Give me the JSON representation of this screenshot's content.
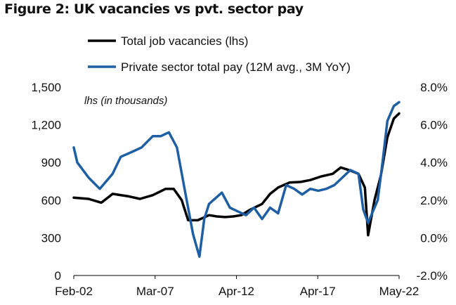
{
  "title": "Figure 2: UK vacancies vs pvt. sector pay",
  "chart_data": {
    "type": "line",
    "annotation": "lhs (in thousands)",
    "legend_position": "top",
    "grid": false,
    "x_ticks": [
      "Feb-02",
      "Mar-07",
      "Apr-12",
      "Apr-17",
      "May-22"
    ],
    "x_range": [
      2002.08,
      2022.33
    ],
    "y_left": {
      "range": [
        0,
        1500
      ],
      "ticks": [
        "0",
        "300",
        "600",
        "900",
        "1,200",
        "1,500"
      ]
    },
    "y_right": {
      "range": [
        -2.0,
        8.0
      ],
      "ticks": [
        "-2.0%",
        "0.0%",
        "2.0%",
        "4.0%",
        "6.0%",
        "8.0%"
      ]
    },
    "series": [
      {
        "name": "Total job vacancies (lhs)",
        "axis": "left",
        "color": "#000000",
        "x": [
          2002.08,
          2003.0,
          2003.8,
          2004.5,
          2005.5,
          2006.2,
          2007.0,
          2007.8,
          2008.3,
          2008.8,
          2009.2,
          2009.8,
          2010.5,
          2011.0,
          2011.5,
          2012.0,
          2012.5,
          2013.0,
          2013.8,
          2014.3,
          2014.8,
          2015.5,
          2016.2,
          2016.8,
          2017.5,
          2018.2,
          2018.7,
          2019.2,
          2019.8,
          2020.2,
          2020.4,
          2020.8,
          2021.2,
          2021.6,
          2022.0,
          2022.33
        ],
        "y": [
          620,
          610,
          580,
          650,
          630,
          610,
          640,
          690,
          690,
          600,
          440,
          440,
          480,
          470,
          465,
          470,
          480,
          520,
          570,
          650,
          700,
          740,
          745,
          760,
          790,
          810,
          860,
          840,
          810,
          700,
          320,
          600,
          800,
          1100,
          1250,
          1290
        ]
      },
      {
        "name": "Private sector total pay (12M avg., 3M YoY)",
        "axis": "right",
        "color": "#1e5fa3",
        "x": [
          2002.08,
          2002.3,
          2003.0,
          2003.7,
          2004.5,
          2005.0,
          2005.8,
          2006.3,
          2007.0,
          2007.5,
          2008.0,
          2008.5,
          2009.0,
          2009.5,
          2009.9,
          2010.2,
          2010.5,
          2010.9,
          2011.3,
          2011.8,
          2012.3,
          2012.8,
          2013.3,
          2013.8,
          2014.3,
          2014.8,
          2015.3,
          2015.8,
          2016.3,
          2016.8,
          2017.3,
          2017.8,
          2018.3,
          2018.8,
          2019.3,
          2019.8,
          2020.1,
          2020.4,
          2020.7,
          2021.0,
          2021.3,
          2021.6,
          2022.0,
          2022.33
        ],
        "y": [
          4.8,
          4.0,
          3.2,
          2.6,
          3.4,
          4.3,
          4.6,
          4.8,
          5.4,
          5.4,
          5.6,
          4.8,
          2.5,
          0.2,
          -1.0,
          1.0,
          1.8,
          2.1,
          2.4,
          1.6,
          1.4,
          1.2,
          1.6,
          1.0,
          1.6,
          1.3,
          2.8,
          2.6,
          2.3,
          2.6,
          2.5,
          2.6,
          2.8,
          3.2,
          3.6,
          3.4,
          1.5,
          0.8,
          1.4,
          2.0,
          4.0,
          6.2,
          7.0,
          7.2
        ]
      }
    ]
  }
}
